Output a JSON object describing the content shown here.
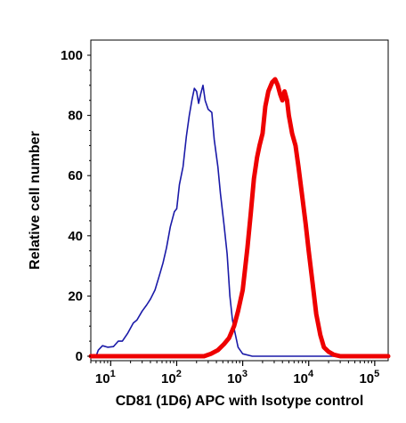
{
  "chart_data": {
    "type": "line",
    "title": "",
    "xlabel": "CD81 (1D6) APC with Isotype control",
    "ylabel": "Relative cell number",
    "x_scale": "log",
    "xlim": [
      5,
      160000
    ],
    "ylim": [
      0,
      100
    ],
    "y_ticks": [
      0,
      20,
      40,
      60,
      80,
      100
    ],
    "x_ticks": [
      {
        "base": "10",
        "exp": "1",
        "value": 10
      },
      {
        "base": "10",
        "exp": "2",
        "value": 100
      },
      {
        "base": "10",
        "exp": "3",
        "value": 1000
      },
      {
        "base": "10",
        "exp": "4",
        "value": 10000
      },
      {
        "base": "10",
        "exp": "5",
        "value": 100000
      }
    ],
    "grid": false,
    "legend": "none",
    "series": [
      {
        "color": "#1a1aa8",
        "points": [
          [
            5,
            0
          ],
          [
            6,
            0
          ],
          [
            6.5,
            2
          ],
          [
            7.5,
            3.5
          ],
          [
            9,
            3
          ],
          [
            11,
            3.2
          ],
          [
            13,
            5
          ],
          [
            15,
            5
          ],
          [
            18,
            7.5
          ],
          [
            22,
            11
          ],
          [
            25,
            12
          ],
          [
            30,
            15
          ],
          [
            35,
            17
          ],
          [
            40,
            19
          ],
          [
            47,
            22
          ],
          [
            55,
            27
          ],
          [
            62,
            31
          ],
          [
            70,
            36
          ],
          [
            80,
            43
          ],
          [
            92,
            48
          ],
          [
            100,
            49
          ],
          [
            110,
            57
          ],
          [
            125,
            63
          ],
          [
            140,
            73
          ],
          [
            155,
            80
          ],
          [
            170,
            85
          ],
          [
            185,
            89
          ],
          [
            200,
            88
          ],
          [
            215,
            84
          ],
          [
            230,
            87
          ],
          [
            250,
            90
          ],
          [
            270,
            85
          ],
          [
            300,
            82
          ],
          [
            340,
            81
          ],
          [
            370,
            72
          ],
          [
            420,
            63
          ],
          [
            460,
            54
          ],
          [
            520,
            44
          ],
          [
            580,
            34
          ],
          [
            640,
            20
          ],
          [
            700,
            12
          ],
          [
            760,
            8
          ],
          [
            850,
            3
          ],
          [
            1000,
            0.8
          ],
          [
            1400,
            0
          ],
          [
            160000,
            0
          ]
        ]
      },
      {
        "color": "#ee0000",
        "points": [
          [
            5,
            0
          ],
          [
            260,
            0
          ],
          [
            330,
            0.8
          ],
          [
            420,
            2
          ],
          [
            520,
            4
          ],
          [
            620,
            6
          ],
          [
            740,
            10
          ],
          [
            850,
            15
          ],
          [
            1000,
            22
          ],
          [
            1180,
            36
          ],
          [
            1320,
            47
          ],
          [
            1480,
            59
          ],
          [
            1650,
            66
          ],
          [
            1800,
            70
          ],
          [
            2000,
            74
          ],
          [
            2200,
            83
          ],
          [
            2450,
            88
          ],
          [
            2800,
            91
          ],
          [
            3100,
            92
          ],
          [
            3400,
            90
          ],
          [
            3700,
            87
          ],
          [
            4000,
            85
          ],
          [
            4300,
            88
          ],
          [
            4700,
            85
          ],
          [
            5000,
            80
          ],
          [
            5600,
            74
          ],
          [
            6300,
            70
          ],
          [
            7000,
            63
          ],
          [
            8000,
            53
          ],
          [
            9000,
            44
          ],
          [
            10000,
            35
          ],
          [
            11500,
            24
          ],
          [
            13000,
            14
          ],
          [
            15000,
            7
          ],
          [
            17000,
            3
          ],
          [
            20000,
            1.5
          ],
          [
            24000,
            0.5
          ],
          [
            30000,
            0
          ],
          [
            160000,
            0
          ]
        ]
      }
    ]
  }
}
